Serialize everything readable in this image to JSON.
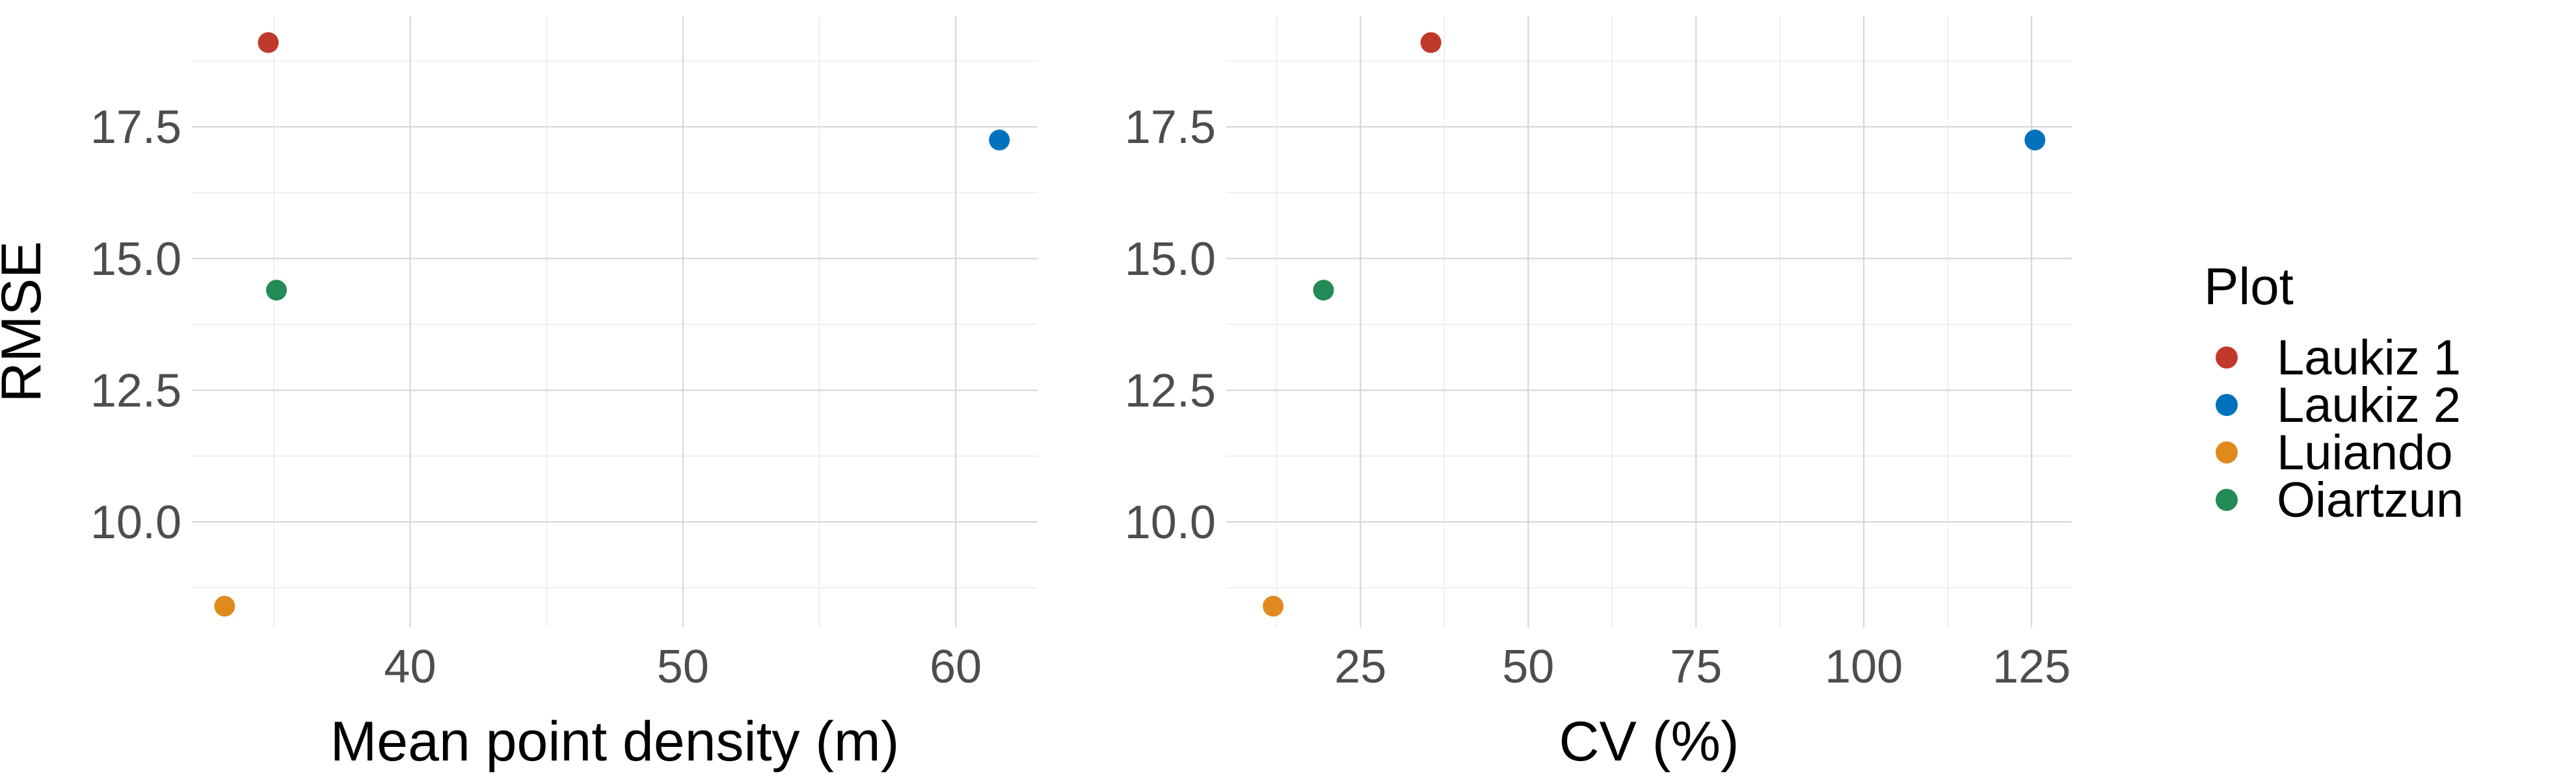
{
  "chart_data": [
    {
      "type": "scatter",
      "xlabel": "Mean point density (m)",
      "ylabel": "RMSE",
      "xlim": [
        32,
        63
      ],
      "ylim": [
        8.0,
        19.6
      ],
      "xticks": [
        40,
        50,
        60
      ],
      "xtick_labels": [
        "40",
        "50",
        "60"
      ],
      "yticks": [
        10.0,
        12.5,
        15.0,
        17.5
      ],
      "ytick_labels": [
        "10.0",
        "12.5",
        "15.0",
        "17.5"
      ],
      "grid": true,
      "series": [
        {
          "name": "Laukiz 1",
          "color": "#c0392b",
          "x": [
            34.8
          ],
          "y": [
            19.1
          ]
        },
        {
          "name": "Laukiz 2",
          "color": "#0072bd",
          "x": [
            61.6
          ],
          "y": [
            17.25
          ]
        },
        {
          "name": "Luiando",
          "color": "#e08a1e",
          "x": [
            33.2
          ],
          "y": [
            8.4
          ]
        },
        {
          "name": "Oiartzun",
          "color": "#238b55",
          "x": [
            35.1
          ],
          "y": [
            14.4
          ]
        }
      ]
    },
    {
      "type": "scatter",
      "xlabel": "CV (%)",
      "ylabel": "",
      "xlim": [
        5,
        131
      ],
      "ylim": [
        8.0,
        19.6
      ],
      "xticks": [
        25,
        50,
        75,
        100,
        125
      ],
      "xtick_labels": [
        "25",
        "50",
        "75",
        "100",
        "125"
      ],
      "yticks": [
        10.0,
        12.5,
        15.0,
        17.5
      ],
      "ytick_labels": [
        "10.0",
        "12.5",
        "15.0",
        "17.5"
      ],
      "grid": true,
      "series": [
        {
          "name": "Laukiz 1",
          "color": "#c0392b",
          "x": [
            35.5
          ],
          "y": [
            19.1
          ]
        },
        {
          "name": "Laukiz 2",
          "color": "#0072bd",
          "x": [
            125.5
          ],
          "y": [
            17.25
          ]
        },
        {
          "name": "Luiando",
          "color": "#e08a1e",
          "x": [
            12
          ],
          "y": [
            8.4
          ]
        },
        {
          "name": "Oiartzun",
          "color": "#238b55",
          "x": [
            19.5
          ],
          "y": [
            14.4
          ]
        }
      ]
    }
  ],
  "legend": {
    "title": "Plot",
    "placement": "right",
    "items": [
      {
        "label": "Laukiz 1",
        "color": "#c0392b"
      },
      {
        "label": "Laukiz 2",
        "color": "#0072bd"
      },
      {
        "label": "Luiando",
        "color": "#e08a1e"
      },
      {
        "label": "Oiartzun",
        "color": "#238b55"
      }
    ]
  }
}
